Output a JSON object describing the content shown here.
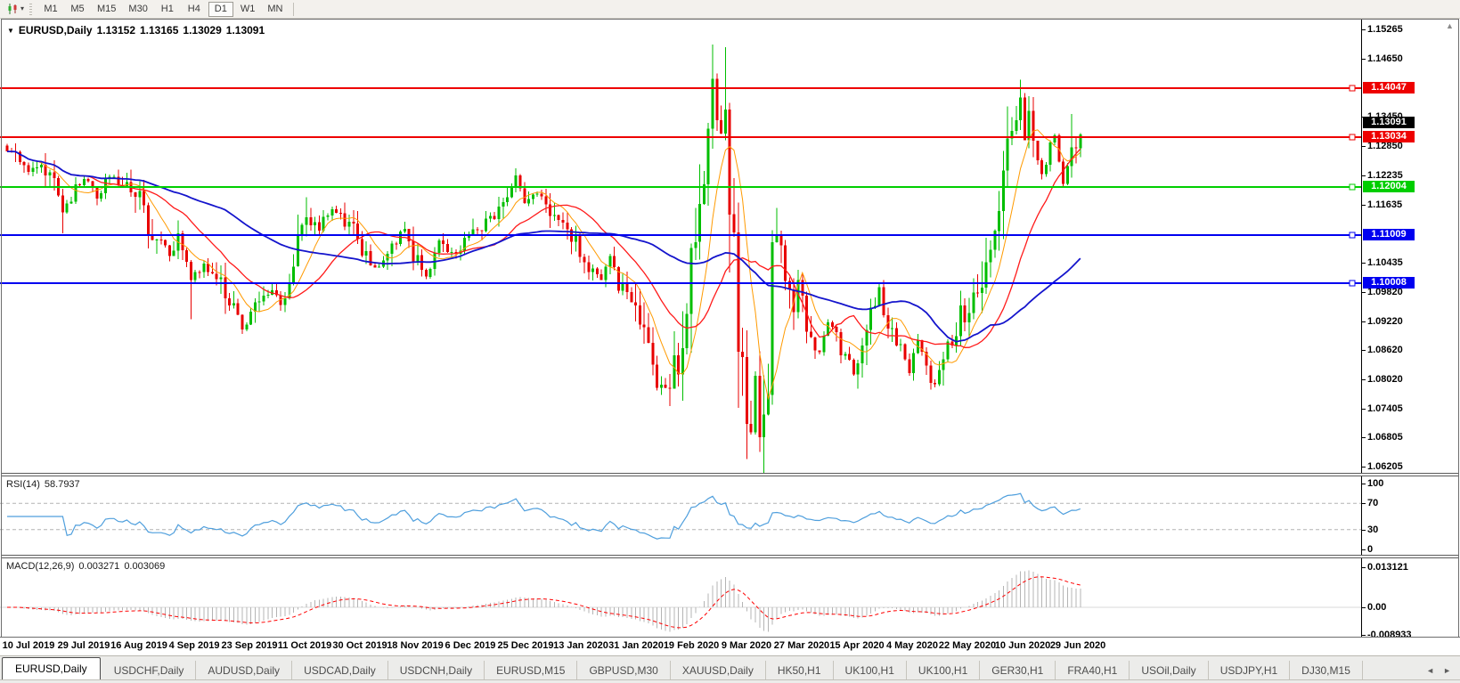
{
  "toolbar": {
    "timeframes": [
      "M1",
      "M5",
      "M15",
      "M30",
      "H1",
      "H4",
      "D1",
      "W1",
      "MN"
    ],
    "active_timeframe": "D1"
  },
  "icons": {
    "chart_dropdown": "▾",
    "title_collapse": "▼",
    "tab_prev": "◄",
    "tab_next": "►",
    "scroll_up": "▲"
  },
  "chart": {
    "title": {
      "symbol": "EURUSD,Daily",
      "open": "1.13152",
      "high": "1.13165",
      "low": "1.13029",
      "close": "1.13091"
    },
    "price_axis": {
      "ticks": [
        "1.15265",
        "1.14650",
        "1.13450",
        "1.12850",
        "1.12235",
        "1.11635",
        "1.10435",
        "1.09820",
        "1.09220",
        "1.08620",
        "1.08020",
        "1.07405",
        "1.06805",
        "1.06205"
      ],
      "current_price": "1.13091",
      "line_labels": [
        {
          "text": "1.14047",
          "color": "#ee0000"
        },
        {
          "text": "1.13034",
          "color": "#ee0000"
        },
        {
          "text": "1.12004",
          "color": "#00ce00"
        },
        {
          "text": "1.11009",
          "color": "#0000f0"
        },
        {
          "text": "1.10008",
          "color": "#0000f0"
        }
      ]
    },
    "date_axis": [
      "10 Jul 2019",
      "29 Jul 2019",
      "16 Aug 2019",
      "4 Sep 2019",
      "23 Sep 2019",
      "11 Oct 2019",
      "30 Oct 2019",
      "18 Nov 2019",
      "6 Dec 2019",
      "25 Dec 2019",
      "13 Jan 2020",
      "31 Jan 2020",
      "19 Feb 2020",
      "9 Mar 2020",
      "27 Mar 2020",
      "15 Apr 2020",
      "4 May 2020",
      "22 May 2020",
      "10 Jun 2020",
      "29 Jun 2020"
    ]
  },
  "rsi_panel": {
    "name": "RSI(14)",
    "value": "58.7937",
    "axis": [
      "100",
      "70",
      "30",
      "0"
    ]
  },
  "macd_panel": {
    "name": "MACD(12,26,9)",
    "value": "0.003271",
    "signal": "0.003069",
    "axis": [
      "0.013121",
      "0.00",
      "-0.008933"
    ]
  },
  "tab_bar": {
    "tabs": [
      "EURUSD,Daily",
      "USDCHF,Daily",
      "AUDUSD,Daily",
      "USDCAD,Daily",
      "USDCNH,Daily",
      "EURUSD,M15",
      "GBPUSD,M30",
      "XAUUSD,Daily",
      "HK50,H1",
      "UK100,H1",
      "UK100,H1",
      "GER30,H1",
      "FRA40,H1",
      "USOil,Daily",
      "USDJPY,H1",
      "DJ30,M15"
    ],
    "active_tab": "EURUSD,Daily"
  },
  "chart_data": {
    "type": "candlestick",
    "symbol": "EURUSD",
    "period": "Daily",
    "y_range": [
      1.06205,
      1.15265
    ],
    "y_axis_ticks": [
      1.15265,
      1.1465,
      1.1345,
      1.1285,
      1.12235,
      1.11635,
      1.10435,
      1.0982,
      1.0922,
      1.0862,
      1.0802,
      1.07405,
      1.06805,
      1.06205
    ],
    "x_date_labels": [
      "10 Jul 2019",
      "29 Jul 2019",
      "16 Aug 2019",
      "4 Sep 2019",
      "23 Sep 2019",
      "11 Oct 2019",
      "30 Oct 2019",
      "18 Nov 2019",
      "6 Dec 2019",
      "25 Dec 2019",
      "13 Jan 2020",
      "31 Jan 2020",
      "19 Feb 2020",
      "9 Mar 2020",
      "27 Mar 2020",
      "15 Apr 2020",
      "4 May 2020",
      "22 May 2020",
      "10 Jun 2020",
      "29 Jun 2020"
    ],
    "current_ohlc": {
      "open": 1.13152,
      "high": 1.13165,
      "low": 1.13029,
      "close": 1.13091
    },
    "horizontal_lines": [
      {
        "price": 1.14047,
        "color": "#ee0000"
      },
      {
        "price": 1.13034,
        "color": "#ee0000"
      },
      {
        "price": 1.12004,
        "color": "#00ce00"
      },
      {
        "price": 1.11009,
        "color": "#0000f0"
      },
      {
        "price": 1.10008,
        "color": "#0000f0"
      }
    ],
    "candle_count": 252,
    "close_path_anchors": [
      [
        0,
        1.1278
      ],
      [
        3,
        1.1255
      ],
      [
        5,
        1.1232
      ],
      [
        8,
        1.1252
      ],
      [
        11,
        1.1208
      ],
      [
        13,
        1.1142
      ],
      [
        16,
        1.12
      ],
      [
        19,
        1.1218
      ],
      [
        21,
        1.1175
      ],
      [
        24,
        1.1228
      ],
      [
        27,
        1.1205
      ],
      [
        31,
        1.1178
      ],
      [
        33,
        1.1108
      ],
      [
        36,
        1.1085
      ],
      [
        38,
        1.1062
      ],
      [
        40,
        1.11
      ],
      [
        43,
        1.0998
      ],
      [
        46,
        1.1042
      ],
      [
        50,
        1.0998
      ],
      [
        53,
        1.0942
      ],
      [
        55,
        1.0908
      ],
      [
        57,
        1.0932
      ],
      [
        60,
        1.0968
      ],
      [
        62,
        1.0992
      ],
      [
        64,
        1.0952
      ],
      [
        67,
        1.104
      ],
      [
        70,
        1.1142
      ],
      [
        73,
        1.1112
      ],
      [
        76,
        1.1162
      ],
      [
        79,
        1.1135
      ],
      [
        83,
        1.1078
      ],
      [
        86,
        1.1032
      ],
      [
        90,
        1.1075
      ],
      [
        93,
        1.112
      ],
      [
        95,
        1.1062
      ],
      [
        98,
        1.1012
      ],
      [
        101,
        1.108
      ],
      [
        104,
        1.1062
      ],
      [
        107,
        1.1082
      ],
      [
        110,
        1.1112
      ],
      [
        113,
        1.1132
      ],
      [
        117,
        1.1178
      ],
      [
        119,
        1.1222
      ],
      [
        121,
        1.1162
      ],
      [
        124,
        1.1182
      ],
      [
        127,
        1.1152
      ],
      [
        130,
        1.112
      ],
      [
        133,
        1.1092
      ],
      [
        136,
        1.1032
      ],
      [
        139,
        1.1012
      ],
      [
        141,
        1.1058
      ],
      [
        143,
        1.1002
      ],
      [
        146,
        1.0952
      ],
      [
        149,
        1.0882
      ],
      [
        152,
        1.0802
      ],
      [
        155,
        1.0786
      ],
      [
        157,
        1.0852
      ],
      [
        159,
        1.0982
      ],
      [
        161,
        1.113
      ],
      [
        164,
        1.1302
      ],
      [
        165,
        1.145
      ],
      [
        166,
        1.1352
      ],
      [
        167,
        1.1282
      ],
      [
        168,
        1.133
      ],
      [
        169,
        1.1182
      ],
      [
        170,
        1.1062
      ],
      [
        171,
        1.0922
      ],
      [
        172,
        1.0792
      ],
      [
        173,
        1.0682
      ],
      [
        174,
        1.0722
      ],
      [
        175,
        1.0802
      ],
      [
        176,
        1.0702
      ],
      [
        178,
        1.0782
      ],
      [
        179,
        1.1042
      ],
      [
        180,
        1.1132
      ],
      [
        182,
        1.1002
      ],
      [
        184,
        1.0952
      ],
      [
        185,
        1.0992
      ],
      [
        188,
        1.0882
      ],
      [
        190,
        1.0852
      ],
      [
        192,
        1.0922
      ],
      [
        195,
        1.0872
      ],
      [
        198,
        1.0822
      ],
      [
        200,
        1.0862
      ],
      [
        202,
        1.0942
      ],
      [
        204,
        1.0986
      ],
      [
        206,
        1.0902
      ],
      [
        209,
        1.0872
      ],
      [
        211,
        1.0822
      ],
      [
        213,
        1.0882
      ],
      [
        215,
        1.0822
      ],
      [
        217,
        1.0796
      ],
      [
        219,
        1.0826
      ],
      [
        221,
        1.0882
      ],
      [
        223,
        1.0942
      ],
      [
        224,
        1.0902
      ],
      [
        226,
        1.0982
      ],
      [
        228,
        1.1012
      ],
      [
        230,
        1.1102
      ],
      [
        232,
        1.1162
      ],
      [
        234,
        1.1256
      ],
      [
        236,
        1.1342
      ],
      [
        237,
        1.1396
      ],
      [
        238,
        1.1302
      ],
      [
        239,
        1.1352
      ],
      [
        240,
        1.1302
      ],
      [
        241,
        1.1252
      ],
      [
        242,
        1.1216
      ],
      [
        243,
        1.1246
      ],
      [
        244,
        1.1282
      ],
      [
        245,
        1.1302
      ],
      [
        246,
        1.1252
      ],
      [
        247,
        1.1206
      ],
      [
        248,
        1.1246
      ],
      [
        249,
        1.1272
      ],
      [
        250,
        1.1292
      ],
      [
        251,
        1.13091
      ]
    ],
    "high_low_spikes": [
      {
        "i": 13,
        "l": 1.1104
      },
      {
        "i": 43,
        "l": 1.0926
      },
      {
        "i": 70,
        "h": 1.1179
      },
      {
        "i": 119,
        "h": 1.1239
      },
      {
        "i": 155,
        "l": 1.0778
      },
      {
        "i": 165,
        "h": 1.1495
      },
      {
        "i": 173,
        "l": 1.0636
      },
      {
        "i": 176,
        "l": 1.0651
      },
      {
        "i": 237,
        "h": 1.1422
      },
      {
        "i": 249,
        "h": 1.1351
      }
    ],
    "moving_averages": [
      {
        "period": 8,
        "color": "#ff9a00",
        "width": 1
      },
      {
        "period": 20,
        "color": "#ff1a1a",
        "width": 1.3
      },
      {
        "period": 52,
        "color": "#1414cc",
        "width": 1.8
      }
    ],
    "rsi": {
      "period": 14,
      "last_value": 58.7937,
      "levels": [
        70,
        30
      ],
      "range": [
        0,
        100
      ],
      "color": "#4f9fdd"
    },
    "macd": {
      "fast": 12,
      "slow": 26,
      "signal": 9,
      "last_macd": 0.003271,
      "last_signal": 0.003069,
      "axis_max": 0.013121,
      "axis_min": -0.008933,
      "histogram_color": "#b4b4b4",
      "signal_color": "#ff0000"
    },
    "candle_colors": {
      "up": "#00be00",
      "down": "#e80000"
    }
  }
}
